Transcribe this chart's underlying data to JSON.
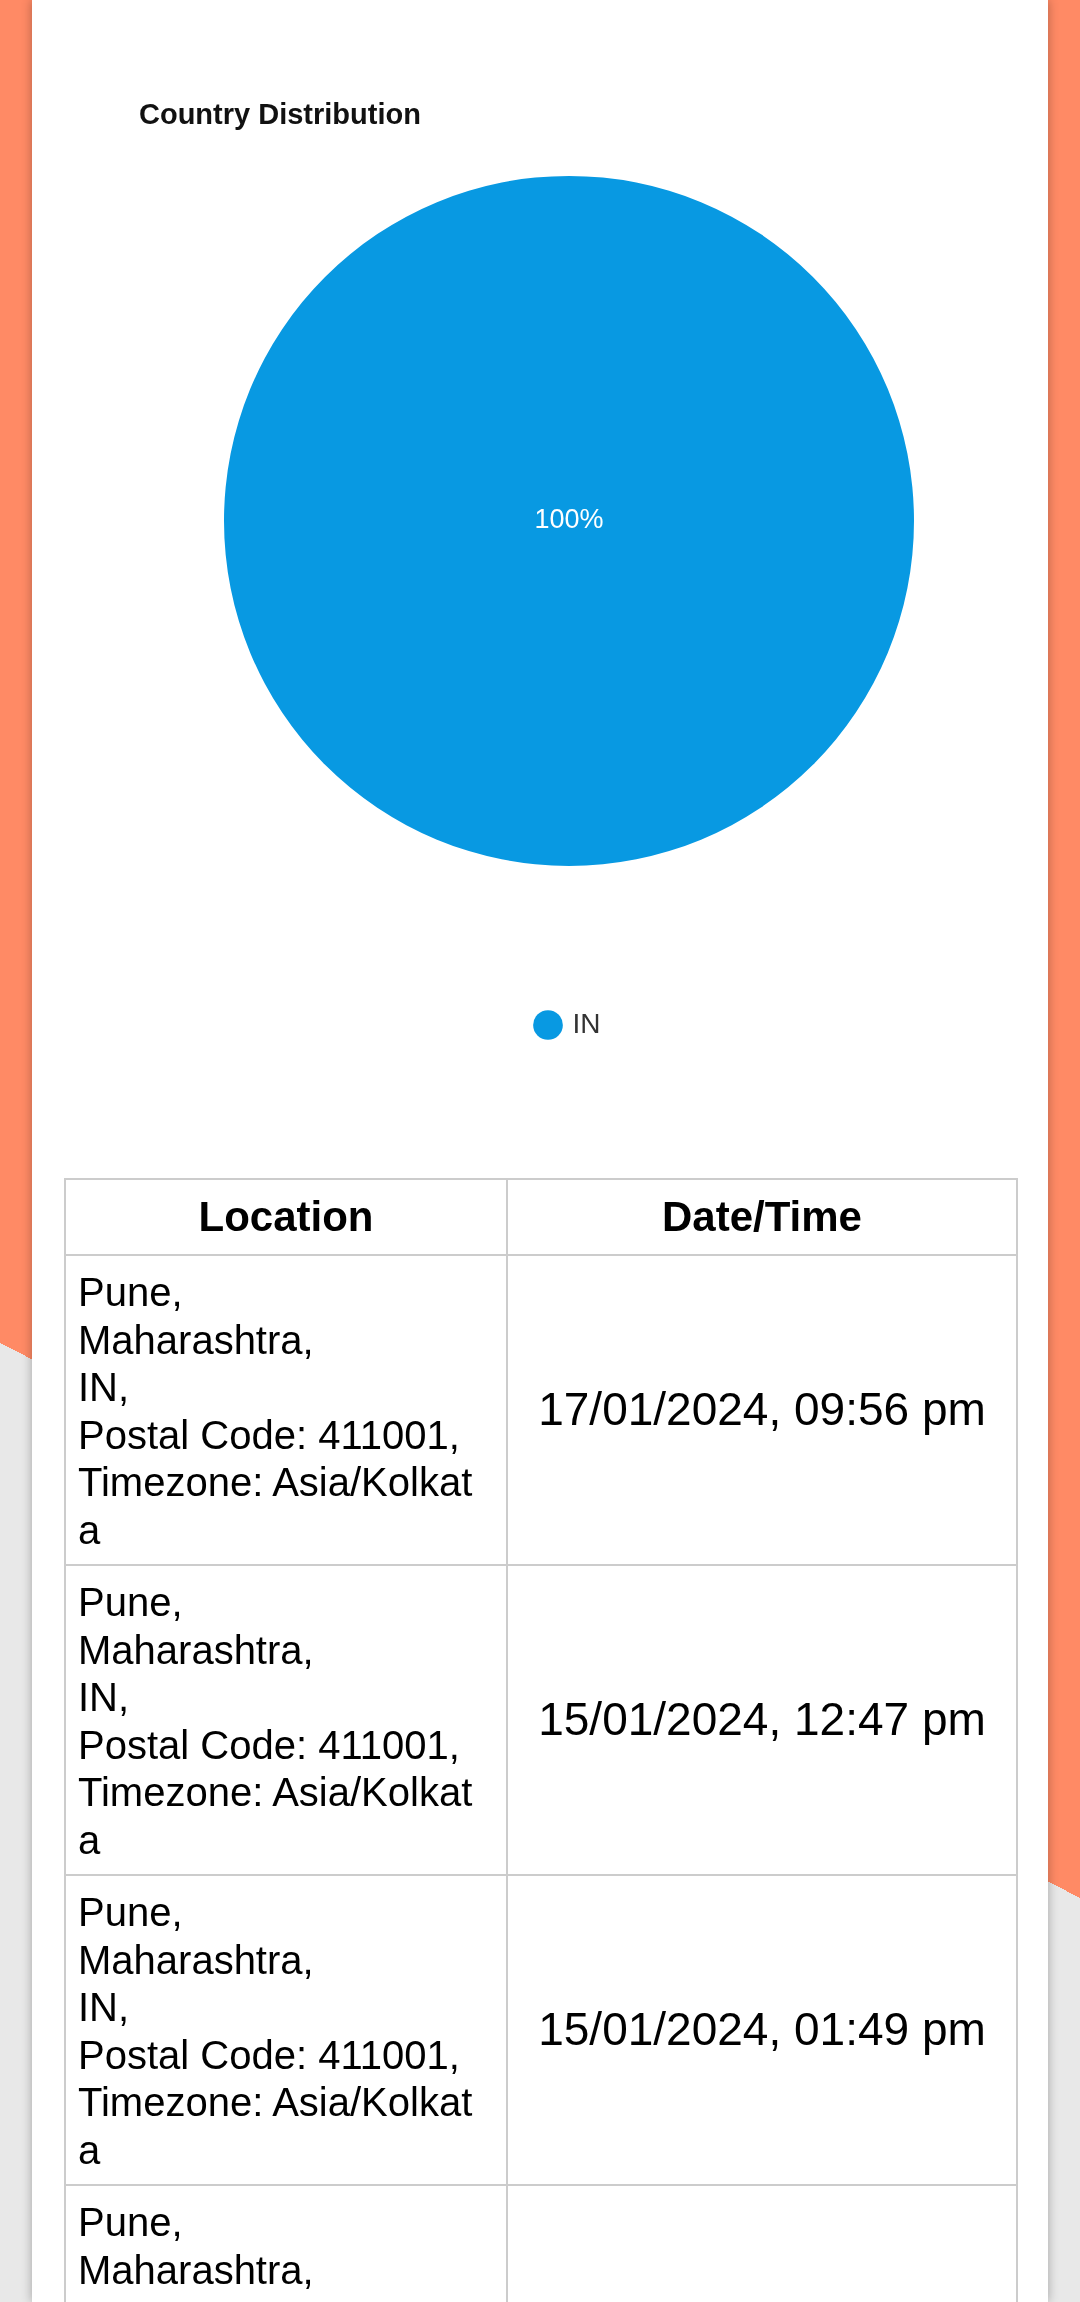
{
  "chart_data": [
    {
      "type": "pie",
      "title": "Country Distribution",
      "categories": [
        "IN"
      ],
      "values": [
        100
      ],
      "colors": [
        "#0899e2"
      ],
      "value_labels": [
        "100%"
      ],
      "legend": "bottom"
    },
    {
      "type": "other",
      "categories": [
        "Location",
        "Date/Time"
      ],
      "annotations": [
        "Pune,\nMaharashtra,\nIN,\nPostal Code: 411001,\nTimezone: Asia/Kolkata",
        "17/01/2024, 09:56 pm",
        "Pune,\nMaharashtra,\nIN,\nPostal Code: 411001,\nTimezone: Asia/Kolkata",
        "15/01/2024, 12:47 pm",
        "Pune,\nMaharashtra,\nIN,\nPostal Code: 411001,\nTimezone: Asia/Kolkata",
        "15/01/2024, 01:49 pm",
        "Pune,\nMaharashtra,"
      ]
    }
  ]
}
